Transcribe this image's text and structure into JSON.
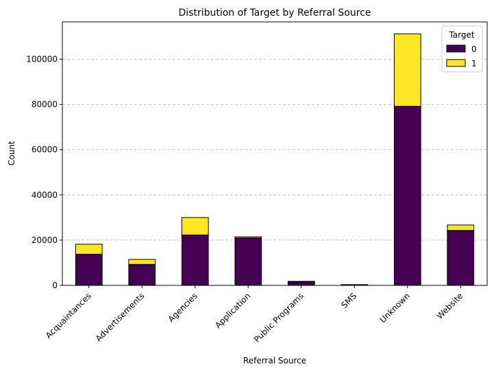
{
  "chart_data": {
    "type": "bar",
    "stacked": true,
    "title": "Distribution of Target by Referral Source",
    "xlabel": "Referral Source",
    "ylabel": "Count",
    "categories": [
      "Acquaintances",
      "Advertisements",
      "Agencies",
      "Application",
      "Public Programs",
      "SMS",
      "Unknown",
      "Website"
    ],
    "series": [
      {
        "name": "0",
        "color": "#440154",
        "values": [
          13800,
          9300,
          22300,
          21000,
          1500,
          250,
          79200,
          24300
        ]
      },
      {
        "name": "1",
        "color": "#fde725",
        "values": [
          4400,
          2200,
          7700,
          500,
          300,
          100,
          32000,
          2400
        ]
      }
    ],
    "ylim": [
      0,
      116500
    ],
    "yticks": [
      0,
      20000,
      40000,
      60000,
      80000,
      100000
    ],
    "grid": "y-dashed",
    "legend": {
      "title": "Target",
      "position": "top-right"
    }
  }
}
